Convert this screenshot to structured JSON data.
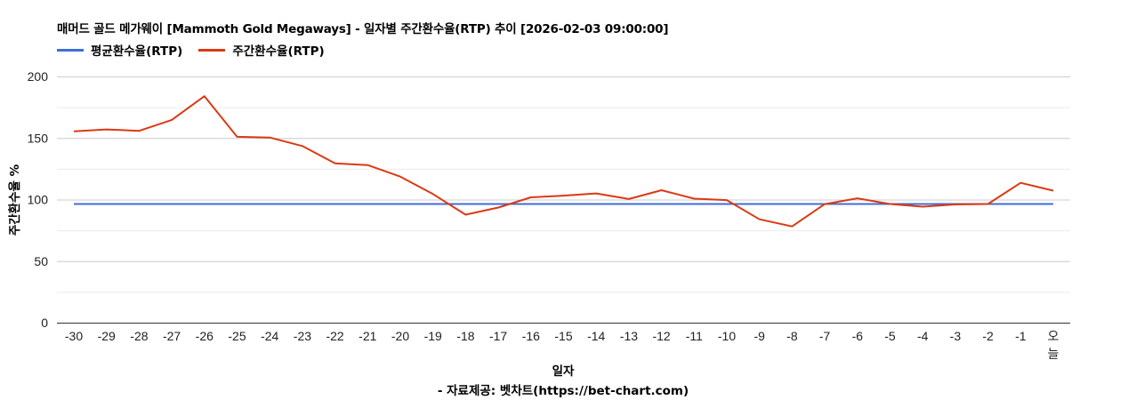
{
  "header": {
    "title": "매머드 골드 메가웨이 [Mammoth Gold Megaways] - 일자별 주간환수율(RTP) 추이 [2026-02-03 09:00:00]"
  },
  "legend": [
    {
      "label": "평균환수율(RTP)",
      "color": "#3c6fd8"
    },
    {
      "label": "주간환수율(RTP)",
      "color": "#dc3912"
    }
  ],
  "axes": {
    "y_title": "주간환수율 %",
    "x_title": "일자"
  },
  "footer": {
    "source": "- 자료제공: 벳차트(https://bet-chart.com)"
  },
  "chart_data": {
    "type": "line",
    "title": "매머드 골드 메가웨이 [Mammoth Gold Megaways] - 일자별 주간환수율(RTP) 추이 [2026-02-03 09:00:00]",
    "xlabel": "일자",
    "ylabel": "주간환수율 %",
    "ylim": [
      0,
      200
    ],
    "yticks": [
      0,
      50,
      100,
      150,
      200
    ],
    "grid": true,
    "legend_position": "top-left",
    "categories": [
      "-30",
      "-29",
      "-28",
      "-27",
      "-26",
      "-25",
      "-24",
      "-23",
      "-22",
      "-21",
      "-20",
      "-19",
      "-18",
      "-17",
      "-16",
      "-15",
      "-14",
      "-13",
      "-12",
      "-11",
      "-10",
      "-9",
      "-8",
      "-7",
      "-6",
      "-5",
      "-4",
      "-3",
      "-2",
      "-1",
      "오늘"
    ],
    "series": [
      {
        "name": "평균환수율(RTP)",
        "color": "#3c6fd8",
        "values": [
          96.4,
          96.4,
          96.4,
          96.4,
          96.4,
          96.4,
          96.4,
          96.4,
          96.4,
          96.4,
          96.4,
          96.4,
          96.4,
          96.4,
          96.4,
          96.4,
          96.4,
          96.4,
          96.4,
          96.4,
          96.4,
          96.4,
          96.4,
          96.4,
          96.4,
          96.4,
          96.4,
          96.4,
          96.4,
          96.4,
          96.4
        ]
      },
      {
        "name": "주간환수율(RTP)",
        "color": "#dc3912",
        "values": [
          155.4,
          157.0,
          155.8,
          164.7,
          184.0,
          151.0,
          150.4,
          143.5,
          129.4,
          128.0,
          118.6,
          104.5,
          87.7,
          93.5,
          101.8,
          103.2,
          105.0,
          100.4,
          107.6,
          100.7,
          99.6,
          84.0,
          78.2,
          96.3,
          101.0,
          96.4,
          94.2,
          96.0,
          96.4,
          113.6,
          107.2
        ]
      }
    ]
  }
}
